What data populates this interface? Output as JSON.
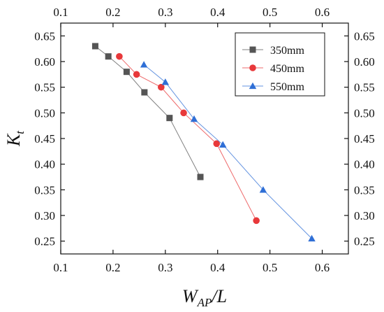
{
  "chart_data": {
    "type": "line",
    "title": "",
    "xlabel": "W",
    "xlabel_sub": "AP",
    "xlabel_suffix": "/L",
    "ylabel": "K",
    "ylabel_sub": "t",
    "xlim": [
      0.1,
      0.65
    ],
    "ylim": [
      0.225,
      0.675
    ],
    "xticks": [
      "0.1",
      "0.2",
      "0.3",
      "0.4",
      "0.5",
      "0.6"
    ],
    "yticks": [
      "0.25",
      "0.30",
      "0.35",
      "0.40",
      "0.45",
      "0.50",
      "0.55",
      "0.60",
      "0.65"
    ],
    "grid": false,
    "mirror_axes": true,
    "legend_position": "top-right",
    "series": [
      {
        "name": "350mm",
        "color": "#555555",
        "marker": "square",
        "x": [
          0.166,
          0.191,
          0.226,
          0.26,
          0.308,
          0.367
        ],
        "y": [
          0.63,
          0.61,
          0.58,
          0.54,
          0.49,
          0.375
        ]
      },
      {
        "name": "450mm",
        "color": "#e8383a",
        "marker": "circle",
        "x": [
          0.212,
          0.245,
          0.292,
          0.335,
          0.398,
          0.474
        ],
        "y": [
          0.61,
          0.575,
          0.55,
          0.5,
          0.44,
          0.29
        ]
      },
      {
        "name": "550mm",
        "color": "#2f6fd6",
        "marker": "triangle",
        "x": [
          0.259,
          0.3,
          0.355,
          0.41,
          0.487,
          0.58
        ],
        "y": [
          0.594,
          0.56,
          0.488,
          0.438,
          0.35,
          0.255
        ]
      }
    ]
  }
}
